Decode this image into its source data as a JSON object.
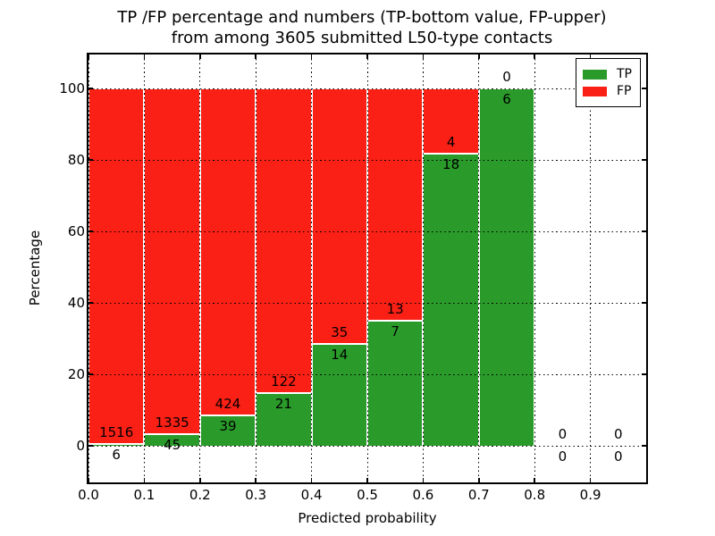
{
  "figure": {
    "title_line1": "TP /FP percentage and numbers (TP-bottom value, FP-upper)",
    "title_line2": "from among 3605 submitted L50-type contacts"
  },
  "chart_data": {
    "type": "bar",
    "stacked": true,
    "title": "TP /FP percentage and numbers (TP-bottom value, FP-upper)\nfrom among 3605 submitted L50-type contacts",
    "xlabel": "Predicted probability",
    "ylabel": "Percentage",
    "total_contacts": 3605,
    "xlim": [
      0.0,
      1.0
    ],
    "ylim": [
      -10.25,
      109.5
    ],
    "xticks": [
      "0.0",
      "0.1",
      "0.2",
      "0.3",
      "0.4",
      "0.5",
      "0.6",
      "0.7",
      "0.8",
      "0.9"
    ],
    "yticks": [
      0,
      20,
      40,
      60,
      80,
      100
    ],
    "grid": "dotted",
    "bar_edge_color": "#ffffff",
    "series": [
      {
        "name": "TP",
        "color": "#2a9b2a",
        "position": "bottom"
      },
      {
        "name": "FP",
        "color": "#fb2015",
        "position": "top"
      }
    ],
    "bins": [
      {
        "x0": 0.0,
        "x1": 0.1,
        "tp": 6,
        "fp": 1516,
        "tp_percent": 0.39,
        "fp_percent": 99.61
      },
      {
        "x0": 0.1,
        "x1": 0.2,
        "tp": 45,
        "fp": 1335,
        "tp_percent": 3.26,
        "fp_percent": 96.74
      },
      {
        "x0": 0.2,
        "x1": 0.3,
        "tp": 39,
        "fp": 424,
        "tp_percent": 8.42,
        "fp_percent": 91.58
      },
      {
        "x0": 0.3,
        "x1": 0.4,
        "tp": 21,
        "fp": 122,
        "tp_percent": 14.69,
        "fp_percent": 85.31
      },
      {
        "x0": 0.4,
        "x1": 0.5,
        "tp": 14,
        "fp": 35,
        "tp_percent": 28.57,
        "fp_percent": 71.43
      },
      {
        "x0": 0.5,
        "x1": 0.6,
        "tp": 7,
        "fp": 13,
        "tp_percent": 35.0,
        "fp_percent": 65.0
      },
      {
        "x0": 0.6,
        "x1": 0.7,
        "tp": 18,
        "fp": 4,
        "tp_percent": 81.82,
        "fp_percent": 18.18
      },
      {
        "x0": 0.7,
        "x1": 0.8,
        "tp": 6,
        "fp": 0,
        "tp_percent": 100.0,
        "fp_percent": 0.0
      },
      {
        "x0": 0.8,
        "x1": 0.9,
        "tp": 0,
        "fp": 0,
        "tp_percent": null,
        "fp_percent": null
      },
      {
        "x0": 0.9,
        "x1": 1.0,
        "tp": 0,
        "fp": 0,
        "tp_percent": null,
        "fp_percent": null
      }
    ],
    "legend": {
      "position": "upper right",
      "entries": [
        {
          "label": "TP",
          "color": "#2a9b2a"
        },
        {
          "label": "FP",
          "color": "#fb2015"
        }
      ]
    }
  }
}
